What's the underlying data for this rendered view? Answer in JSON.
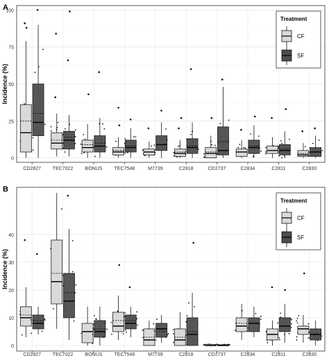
{
  "chart_data": [
    {
      "type": "boxplot",
      "panel_label": "A",
      "ylabel": "Incidence (%)",
      "xlabel": "",
      "ylim": [
        -3,
        103
      ],
      "yticks": [
        0,
        25,
        50,
        75,
        100
      ],
      "grid": true,
      "legend_position": "top-right",
      "legend_title": "Treatment",
      "categories": [
        "CD2827",
        "TEC7022",
        "BONUS",
        "TEC7548",
        "M7739",
        "C2818",
        "CD2737",
        "C2834",
        "C2811",
        "C2830"
      ],
      "series": [
        {
          "name": "CF",
          "color": "#d9d9d9",
          "boxes": [
            {
              "min": 0,
              "q1": 4,
              "median": 17,
              "mean": 25,
              "q3": 36,
              "max": 79,
              "outliers": [
                88,
                91
              ]
            },
            {
              "min": 1,
              "q1": 6,
              "median": 10,
              "mean": 12,
              "q3": 17,
              "max": 30,
              "outliers": [
                41,
                84
              ]
            },
            {
              "min": 0,
              "q1": 4,
              "median": 7,
              "mean": 9,
              "q3": 12,
              "max": 23,
              "outliers": [
                43
              ]
            },
            {
              "min": 0,
              "q1": 2,
              "median": 4,
              "mean": 5,
              "q3": 7,
              "max": 14,
              "outliers": [
                22,
                34
              ]
            },
            {
              "min": 0,
              "q1": 2,
              "median": 4,
              "mean": 4,
              "q3": 6,
              "max": 11,
              "outliers": [
                20
              ]
            },
            {
              "min": 0,
              "q1": 1,
              "median": 3,
              "mean": 4,
              "q3": 6,
              "max": 12,
              "outliers": [
                20,
                27
              ]
            },
            {
              "min": 0,
              "q1": 0,
              "median": 3,
              "mean": 4,
              "q3": 7,
              "max": 15,
              "outliers": [
                27
              ]
            },
            {
              "min": 0,
              "q1": 1,
              "median": 4,
              "mean": 4,
              "q3": 6,
              "max": 12,
              "outliers": [
                19
              ]
            },
            {
              "min": 0,
              "q1": 3,
              "median": 5,
              "mean": 5,
              "q3": 8,
              "max": 14,
              "outliers": [
                27
              ]
            },
            {
              "min": 0,
              "q1": 1,
              "median": 2,
              "mean": 3,
              "q3": 5,
              "max": 10,
              "outliers": [
                18
              ]
            }
          ]
        },
        {
          "name": "SF",
          "color": "#4d4d4d",
          "boxes": [
            {
              "min": 0,
              "q1": 15,
              "median": 24,
              "mean": 30,
              "q3": 50,
              "max": 90,
              "outliers": [
                100
              ]
            },
            {
              "min": 1,
              "q1": 6,
              "median": 12,
              "mean": 14,
              "q3": 18,
              "max": 29,
              "outliers": [
                66,
                99
              ]
            },
            {
              "min": 0,
              "q1": 4,
              "median": 8,
              "mean": 10,
              "q3": 15,
              "max": 27,
              "outliers": [
                58
              ]
            },
            {
              "min": 0,
              "q1": 4,
              "median": 7,
              "mean": 8,
              "q3": 12,
              "max": 20,
              "outliers": [
                26
              ]
            },
            {
              "min": 0,
              "q1": 5,
              "median": 9,
              "mean": 9,
              "q3": 15,
              "max": 24,
              "outliers": [
                32
              ]
            },
            {
              "min": 0,
              "q1": 3,
              "median": 7,
              "mean": 8,
              "q3": 13,
              "max": 24,
              "outliers": [
                60
              ]
            },
            {
              "min": 0,
              "q1": 2,
              "median": 5,
              "mean": 11,
              "q3": 21,
              "max": 48,
              "outliers": [
                53
              ]
            },
            {
              "min": 0,
              "q1": 3,
              "median": 7,
              "mean": 8,
              "q3": 12,
              "max": 22,
              "outliers": [
                28
              ]
            },
            {
              "min": 0,
              "q1": 2,
              "median": 5,
              "mean": 6,
              "q3": 9,
              "max": 18,
              "outliers": [
                33
              ]
            },
            {
              "min": 0,
              "q1": 1,
              "median": 4,
              "mean": 4,
              "q3": 7,
              "max": 15,
              "outliers": [
                20
              ]
            }
          ]
        }
      ]
    },
    {
      "type": "boxplot",
      "panel_label": "B",
      "ylabel": "Incidence (%)",
      "xlabel": "",
      "ylim": [
        -2,
        57
      ],
      "yticks": [
        0,
        10,
        20,
        30,
        40
      ],
      "grid": true,
      "legend_position": "top-right",
      "legend_title": "Treatment",
      "categories": [
        "CD2827",
        "TEC7022",
        "BONUS",
        "TEC7548",
        "M7739",
        "C2818",
        "CD2737",
        "C2834",
        "C2811",
        "C2830"
      ],
      "series": [
        {
          "name": "CF",
          "color": "#d9d9d9",
          "boxes": [
            {
              "min": 3,
              "q1": 7,
              "median": 10,
              "mean": 11,
              "q3": 14,
              "max": 21,
              "outliers": [
                38
              ]
            },
            {
              "min": 6,
              "q1": 15,
              "median": 23,
              "mean": 26,
              "q3": 38,
              "max": 55,
              "outliers": []
            },
            {
              "min": 0,
              "q1": 1,
              "median": 5,
              "mean": 5,
              "q3": 8,
              "max": 14,
              "outliers": []
            },
            {
              "min": 2,
              "q1": 5,
              "median": 7,
              "mean": 9,
              "q3": 12,
              "max": 18,
              "outliers": [
                29
              ]
            },
            {
              "min": 0,
              "q1": 0,
              "median": 2,
              "mean": 3,
              "q3": 6,
              "max": 9,
              "outliers": []
            },
            {
              "min": 0,
              "q1": 0,
              "median": 2,
              "mean": 3,
              "q3": 6,
              "max": 12,
              "outliers": []
            },
            {
              "min": 0,
              "q1": 0,
              "median": 0,
              "mean": 0,
              "q3": 0.4,
              "max": 0.8,
              "outliers": []
            },
            {
              "min": 2,
              "q1": 5,
              "median": 7,
              "mean": 8,
              "q3": 10,
              "max": 15,
              "outliers": []
            },
            {
              "min": 0,
              "q1": 2,
              "median": 4,
              "mean": 4,
              "q3": 6,
              "max": 9,
              "outliers": [
                21
              ]
            },
            {
              "min": 1,
              "q1": 4,
              "median": 6,
              "mean": 6,
              "q3": 7,
              "max": 11,
              "outliers": [
                26
              ]
            }
          ]
        },
        {
          "name": "SF",
          "color": "#4d4d4d",
          "boxes": [
            {
              "min": 4,
              "q1": 6,
              "median": 8,
              "mean": 9,
              "q3": 11,
              "max": 14,
              "outliers": [
                33
              ]
            },
            {
              "min": 2,
              "q1": 10,
              "median": 16,
              "mean": 19,
              "q3": 26,
              "max": 42,
              "outliers": [
                54
              ]
            },
            {
              "min": 0,
              "q1": 3,
              "median": 5,
              "mean": 6,
              "q3": 9,
              "max": 14,
              "outliers": []
            },
            {
              "min": 3,
              "q1": 6,
              "median": 8,
              "mean": 9,
              "q3": 11,
              "max": 14,
              "outliers": [
                21
              ]
            },
            {
              "min": 1,
              "q1": 3,
              "median": 6,
              "mean": 5,
              "q3": 8,
              "max": 11,
              "outliers": []
            },
            {
              "min": 0,
              "q1": 0,
              "median": 4,
              "mean": 5,
              "q3": 10,
              "max": 19,
              "outliers": [
                37
              ]
            },
            {
              "min": 0,
              "q1": 0,
              "median": 0,
              "mean": 0,
              "q3": 0.3,
              "max": 0.6,
              "outliers": []
            },
            {
              "min": 3,
              "q1": 5,
              "median": 8,
              "mean": 8,
              "q3": 10,
              "max": 14,
              "outliers": []
            },
            {
              "min": 1,
              "q1": 5,
              "median": 7,
              "mean": 7,
              "q3": 10,
              "max": 15,
              "outliers": [
                20
              ]
            },
            {
              "min": 0,
              "q1": 2,
              "median": 4,
              "mean": 4,
              "q3": 6,
              "max": 9,
              "outliers": []
            }
          ]
        }
      ]
    }
  ]
}
